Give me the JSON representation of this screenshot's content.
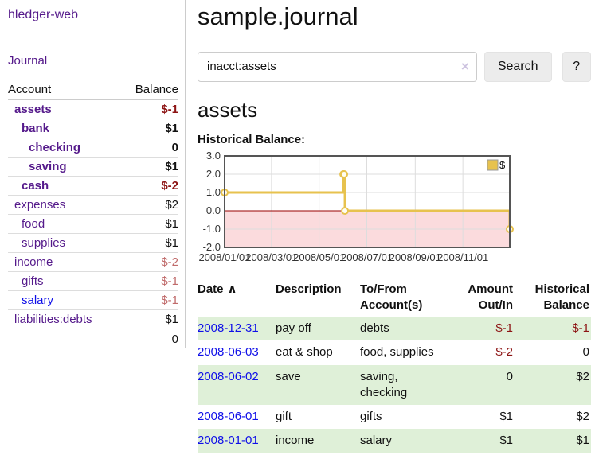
{
  "sidebar": {
    "app_title": "hledger-web",
    "nav": {
      "journal_label": "Journal"
    },
    "accounts_table": {
      "headers": {
        "account": "Account",
        "balance": "Balance"
      },
      "rows": [
        {
          "label": "assets",
          "indent": 1,
          "bold": true,
          "link_color": "purple",
          "balance": "$-1",
          "balance_style": "neg-dark",
          "balance_bold": true
        },
        {
          "label": "bank",
          "indent": 2,
          "bold": true,
          "link_color": "purple",
          "balance": "$1",
          "balance_style": "black",
          "balance_bold": true
        },
        {
          "label": "checking",
          "indent": 3,
          "bold": true,
          "link_color": "purple",
          "balance": "0",
          "balance_style": "black",
          "balance_bold": true
        },
        {
          "label": "saving",
          "indent": 3,
          "bold": true,
          "link_color": "purple",
          "balance": "$1",
          "balance_style": "black",
          "balance_bold": true
        },
        {
          "label": "cash",
          "indent": 2,
          "bold": true,
          "link_color": "purple",
          "balance": "$-2",
          "balance_style": "neg-dark",
          "balance_bold": true
        },
        {
          "label": "expenses",
          "indent": 1,
          "bold": false,
          "link_color": "purple",
          "balance": "$2",
          "balance_style": "black",
          "balance_bold": false
        },
        {
          "label": "food",
          "indent": 2,
          "bold": false,
          "link_color": "purple",
          "balance": "$1",
          "balance_style": "black",
          "balance_bold": false
        },
        {
          "label": "supplies",
          "indent": 2,
          "bold": false,
          "link_color": "purple",
          "balance": "$1",
          "balance_style": "black",
          "balance_bold": false
        },
        {
          "label": "income",
          "indent": 1,
          "bold": false,
          "link_color": "purple",
          "balance": "$-2",
          "balance_style": "neg-light",
          "balance_bold": false
        },
        {
          "label": "gifts",
          "indent": 2,
          "bold": false,
          "link_color": "purple",
          "balance": "$-1",
          "balance_style": "neg-light",
          "balance_bold": false
        },
        {
          "label": "salary",
          "indent": 2,
          "bold": false,
          "link_color": "blue",
          "balance": "$-1",
          "balance_style": "neg-light",
          "balance_bold": false
        },
        {
          "label": "liabilities:debts",
          "indent": 1,
          "bold": false,
          "link_color": "purple",
          "balance": "$1",
          "balance_style": "black",
          "balance_bold": false
        }
      ],
      "total": "0"
    }
  },
  "header": {
    "title": "sample.journal"
  },
  "search": {
    "value": "inacct:assets",
    "clear_icon": "×",
    "search_label": "Search",
    "help_label": "?"
  },
  "account_page": {
    "heading": "assets"
  },
  "chart_data": {
    "type": "line",
    "title": "Historical Balance:",
    "step": true,
    "series": [
      {
        "name": "$",
        "points": [
          [
            "2008-01-01",
            1
          ],
          [
            "2008-06-01",
            2
          ],
          [
            "2008-06-02",
            2
          ],
          [
            "2008-06-03",
            0
          ],
          [
            "2008-12-31",
            -1
          ]
        ]
      }
    ],
    "x_ticks": [
      "2008/01/01",
      "2008/03/01",
      "2008/05/01",
      "2008/07/01",
      "2008/09/01",
      "2008/11/01"
    ],
    "y_ticks": [
      "3.0",
      "2.0",
      "1.0",
      "0.0",
      "-1.0",
      "-2.0"
    ],
    "xlim": [
      "2008-01-01",
      "2008-12-31"
    ],
    "ylim": [
      -2,
      3
    ],
    "grid": true,
    "legend_position": "top-right",
    "line_color": "#e7c24e",
    "marker_fill": "#fffdf2",
    "negative_fill": "#fbdbdd",
    "zero_line_color": "#990000",
    "grid_color": "#ddd",
    "border_color": "#555",
    "tick_text_color": "#333"
  },
  "register_table": {
    "headers": {
      "date": "Date",
      "sort_icon": "∧",
      "description": "Description",
      "tofrom": "To/From Account(s)",
      "amount": "Amount Out/In",
      "balance": "Historical Balance"
    },
    "rows": [
      {
        "date": "2008-12-31",
        "description": "pay off",
        "accounts": "debts",
        "amount": "$-1",
        "amount_neg": true,
        "balance": "$-1",
        "balance_neg": true
      },
      {
        "date": "2008-06-03",
        "description": "eat & shop",
        "accounts": "food, supplies",
        "amount": "$-2",
        "amount_neg": true,
        "balance": "0",
        "balance_neg": false
      },
      {
        "date": "2008-06-02",
        "description": "save",
        "accounts": "saving, checking",
        "amount": "0",
        "amount_neg": false,
        "balance": "$2",
        "balance_neg": false
      },
      {
        "date": "2008-06-01",
        "description": "gift",
        "accounts": "gifts",
        "amount": "$1",
        "amount_neg": false,
        "balance": "$2",
        "balance_neg": false
      },
      {
        "date": "2008-01-01",
        "description": "income",
        "accounts": "salary",
        "amount": "$1",
        "amount_neg": false,
        "balance": "$1",
        "balance_neg": false
      }
    ]
  }
}
